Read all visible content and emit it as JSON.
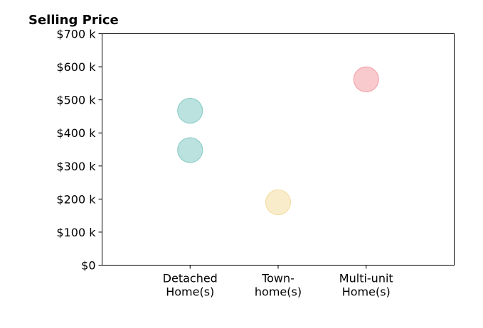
{
  "chart_data": {
    "type": "scatter",
    "title": "Selling Price",
    "xlabel": "",
    "ylabel": "",
    "categories": [
      [
        "Detached",
        "Home(s)"
      ],
      [
        "Town-",
        "home(s)"
      ],
      [
        "Multi-unit",
        "Home(s)"
      ]
    ],
    "xlim": [
      -1,
      3
    ],
    "ylim": [
      0,
      700
    ],
    "yticks": [
      0,
      100,
      200,
      300,
      400,
      500,
      600,
      700
    ],
    "ytick_labels": [
      "$0",
      "$100 k",
      "$200 k",
      "$300 k",
      "$400 k",
      "$500 k",
      "$600 k",
      "$700 k"
    ],
    "grid": false,
    "points": [
      {
        "category": 0,
        "value": 467,
        "color": "#8ecfc9"
      },
      {
        "category": 0,
        "value": 348,
        "color": "#8ecfc9"
      },
      {
        "category": 1,
        "value": 190,
        "color": "#f5dfa8"
      },
      {
        "category": 2,
        "value": 562,
        "color": "#f4a6ad"
      }
    ]
  }
}
